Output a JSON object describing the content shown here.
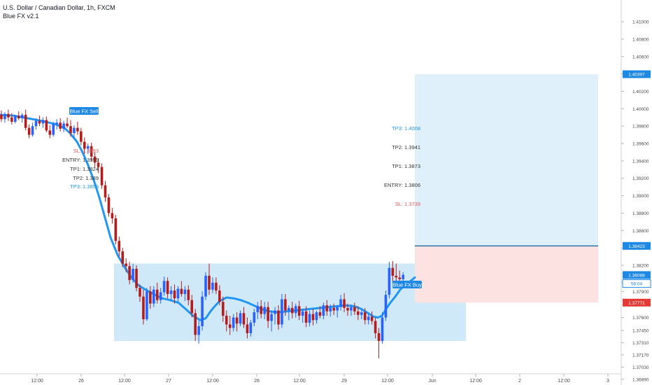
{
  "header": {
    "symbol_title": "U.S. Dollar / Canadian Dollar, 1h, FXCM",
    "indicator_name": "Blue FX v2.1"
  },
  "colors": {
    "up": "#2962ff",
    "down": "#b71c1c",
    "ema": "#2196f3",
    "zone_fill": "#bfe1f6",
    "target_fill": "#dff0fa",
    "stop_fill": "#fde2e2",
    "entry_line": "#1e6fa0",
    "sl_text": "#e05b5b",
    "tp3_text": "#2196f3",
    "neutral_text": "#333333",
    "price_tag_blue": "#1e88e5",
    "price_tag_red": "#e53935"
  },
  "chart_data": {
    "type": "candlestick",
    "symbol": "USDCAD",
    "timeframe": "1h",
    "ylim": [
      1.3684,
      1.4125
    ],
    "y_ticks": [
      "1.41000",
      "1.40800",
      "1.40600",
      "1.40400",
      "1.40200",
      "1.40000",
      "1.39800",
      "1.39600",
      "1.39400",
      "1.39200",
      "1.39000",
      "1.38800",
      "1.38600",
      "1.38400",
      "1.38200",
      "1.38000",
      "1.37900",
      "1.37600",
      "1.37450",
      "1.37310",
      "1.37170",
      "1.37030",
      "1.36890"
    ],
    "x_ticks": [
      "12:00",
      "26",
      "12:00",
      "27",
      "12:00",
      "28",
      "12:00",
      "29",
      "12:00",
      "Jun",
      "12:00",
      "2",
      "12:00",
      "3"
    ],
    "price_tags": [
      {
        "label": "1.40397",
        "value": 1.40397,
        "color": "blue"
      },
      {
        "label": "1.38423",
        "value": 1.38423,
        "color": "blue"
      },
      {
        "label": "1.38088",
        "value": 1.38088,
        "color": "blue"
      },
      {
        "label": "58:04",
        "value": 1.3799,
        "color": "blue_outline"
      },
      {
        "label": "1.37771",
        "value": 1.37771,
        "color": "red"
      }
    ],
    "ohlc_approx_start": 1.3993,
    "sell_signal": {
      "label": "Blue FX Sell",
      "levels": [
        {
          "text": "SL: 1.3993",
          "style": "sl"
        },
        {
          "text": "ENTRY: 1.3959",
          "style": "neutral"
        },
        {
          "text": "TP1: 1.3924",
          "style": "neutral"
        },
        {
          "text": "TP2: 1.389",
          "style": "neutral"
        },
        {
          "text": "TP3: 1.3855",
          "style": "tp3"
        }
      ]
    },
    "buy_signal": {
      "label": "Blue FX Buy",
      "levels": [
        {
          "text": "TP3: 1.4008",
          "style": "tp3"
        },
        {
          "text": "TP2: 1.3941",
          "style": "neutral"
        },
        {
          "text": "TP1: 1.3873",
          "style": "neutral"
        },
        {
          "text": "ENTRY: 1.3806",
          "style": "neutral"
        },
        {
          "text": "SL: 1.3739",
          "style": "sl"
        }
      ]
    },
    "support_zone": {
      "top": 1.3822,
      "bottom": 1.3733
    },
    "long_position": {
      "target": 1.40397,
      "entry": 1.38423,
      "stop": 1.37771
    },
    "ema_path": [
      [
        0,
        1.3993
      ],
      [
        20,
        1.3992
      ],
      [
        40,
        1.3989
      ],
      [
        60,
        1.3986
      ],
      [
        80,
        1.3982
      ],
      [
        92,
        1.3978
      ],
      [
        100,
        1.3972
      ],
      [
        110,
        1.3962
      ],
      [
        118,
        1.395
      ],
      [
        126,
        1.3935
      ],
      [
        134,
        1.3918
      ],
      [
        142,
        1.3898
      ],
      [
        150,
        1.3875
      ],
      [
        158,
        1.3852
      ],
      [
        168,
        1.3832
      ],
      [
        178,
        1.3818
      ],
      [
        188,
        1.3806
      ],
      [
        198,
        1.3797
      ],
      [
        210,
        1.3791
      ],
      [
        222,
        1.3786
      ],
      [
        232,
        1.3782
      ],
      [
        243,
        1.378
      ],
      [
        255,
        1.3777
      ],
      [
        265,
        1.377
      ],
      [
        276,
        1.3762
      ],
      [
        286,
        1.3757
      ],
      [
        294,
        1.3759
      ],
      [
        300,
        1.3766
      ],
      [
        306,
        1.3772
      ],
      [
        314,
        1.3779
      ],
      [
        324,
        1.3783
      ],
      [
        334,
        1.3782
      ],
      [
        344,
        1.378
      ],
      [
        354,
        1.3777
      ],
      [
        365,
        1.3773
      ],
      [
        376,
        1.3769
      ],
      [
        386,
        1.3767
      ],
      [
        398,
        1.3766
      ],
      [
        410,
        1.3767
      ],
      [
        422,
        1.3768
      ],
      [
        434,
        1.3769
      ],
      [
        446,
        1.377
      ],
      [
        458,
        1.3771
      ],
      [
        470,
        1.3772
      ],
      [
        482,
        1.3773
      ],
      [
        494,
        1.3774
      ],
      [
        506,
        1.3773
      ],
      [
        516,
        1.377
      ],
      [
        526,
        1.3765
      ],
      [
        534,
        1.3761
      ],
      [
        540,
        1.376
      ],
      [
        546,
        1.3762
      ],
      [
        552,
        1.377
      ],
      [
        558,
        1.3777
      ],
      [
        565,
        1.3784
      ],
      [
        572,
        1.3792
      ],
      [
        580,
        1.3798
      ],
      [
        587,
        1.3802
      ],
      [
        593,
        1.3806
      ]
    ],
    "candles": [
      {
        "t": 0,
        "o": 1.3993,
        "h": 1.3998,
        "l": 1.3985,
        "c": 1.3988
      },
      {
        "t": 1,
        "o": 1.3988,
        "h": 1.3996,
        "l": 1.3984,
        "c": 1.3994
      },
      {
        "t": 2,
        "o": 1.3994,
        "h": 1.3999,
        "l": 1.3986,
        "c": 1.399
      },
      {
        "t": 3,
        "o": 1.399,
        "h": 1.3995,
        "l": 1.3982,
        "c": 1.3985
      },
      {
        "t": 4,
        "o": 1.3985,
        "h": 1.3993,
        "l": 1.3983,
        "c": 1.3992
      },
      {
        "t": 5,
        "o": 1.3992,
        "h": 1.3997,
        "l": 1.3987,
        "c": 1.3989
      },
      {
        "t": 6,
        "o": 1.3989,
        "h": 1.3995,
        "l": 1.3984,
        "c": 1.3993
      },
      {
        "t": 7,
        "o": 1.3993,
        "h": 1.3999,
        "l": 1.3975,
        "c": 1.3978
      },
      {
        "t": 8,
        "o": 1.3978,
        "h": 1.3982,
        "l": 1.3966,
        "c": 1.397
      },
      {
        "t": 9,
        "o": 1.397,
        "h": 1.3984,
        "l": 1.3968,
        "c": 1.398
      },
      {
        "t": 10,
        "o": 1.398,
        "h": 1.3989,
        "l": 1.3976,
        "c": 1.3986
      },
      {
        "t": 11,
        "o": 1.3986,
        "h": 1.3992,
        "l": 1.398,
        "c": 1.3983
      },
      {
        "t": 12,
        "o": 1.3983,
        "h": 1.399,
        "l": 1.3978,
        "c": 1.3987
      },
      {
        "t": 13,
        "o": 1.3987,
        "h": 1.3991,
        "l": 1.3973,
        "c": 1.3975
      },
      {
        "t": 14,
        "o": 1.3975,
        "h": 1.3981,
        "l": 1.3966,
        "c": 1.397
      },
      {
        "t": 15,
        "o": 1.397,
        "h": 1.3985,
        "l": 1.3968,
        "c": 1.3982
      },
      {
        "t": 16,
        "o": 1.3982,
        "h": 1.3988,
        "l": 1.3976,
        "c": 1.3984
      },
      {
        "t": 17,
        "o": 1.3984,
        "h": 1.3989,
        "l": 1.3974,
        "c": 1.3977
      },
      {
        "t": 18,
        "o": 1.3977,
        "h": 1.3986,
        "l": 1.3973,
        "c": 1.3983
      },
      {
        "t": 19,
        "o": 1.3983,
        "h": 1.399,
        "l": 1.3978,
        "c": 1.398
      },
      {
        "t": 20,
        "o": 1.398,
        "h": 1.3987,
        "l": 1.3968,
        "c": 1.3972
      },
      {
        "t": 21,
        "o": 1.3972,
        "h": 1.3981,
        "l": 1.3966,
        "c": 1.3978
      },
      {
        "t": 22,
        "o": 1.3978,
        "h": 1.3985,
        "l": 1.397,
        "c": 1.3974
      },
      {
        "t": 23,
        "o": 1.3974,
        "h": 1.3978,
        "l": 1.3958,
        "c": 1.3962
      },
      {
        "t": 24,
        "o": 1.3962,
        "h": 1.3967,
        "l": 1.3948,
        "c": 1.3954
      },
      {
        "t": 25,
        "o": 1.3954,
        "h": 1.396,
        "l": 1.3948,
        "c": 1.3957
      },
      {
        "t": 26,
        "o": 1.3957,
        "h": 1.3961,
        "l": 1.394,
        "c": 1.3945
      },
      {
        "t": 27,
        "o": 1.3945,
        "h": 1.395,
        "l": 1.3932,
        "c": 1.3938
      },
      {
        "t": 28,
        "o": 1.3938,
        "h": 1.3943,
        "l": 1.3926,
        "c": 1.3933
      },
      {
        "t": 29,
        "o": 1.3933,
        "h": 1.3937,
        "l": 1.3908,
        "c": 1.3912
      },
      {
        "t": 30,
        "o": 1.3912,
        "h": 1.3917,
        "l": 1.3893,
        "c": 1.3898
      },
      {
        "t": 31,
        "o": 1.3898,
        "h": 1.3902,
        "l": 1.3876,
        "c": 1.388
      },
      {
        "t": 32,
        "o": 1.388,
        "h": 1.3886,
        "l": 1.3868,
        "c": 1.3874
      },
      {
        "t": 33,
        "o": 1.3874,
        "h": 1.3878,
        "l": 1.3844,
        "c": 1.3848
      },
      {
        "t": 34,
        "o": 1.3848,
        "h": 1.3853,
        "l": 1.383,
        "c": 1.3836
      },
      {
        "t": 35,
        "o": 1.3836,
        "h": 1.384,
        "l": 1.3818,
        "c": 1.3822
      },
      {
        "t": 36,
        "o": 1.3822,
        "h": 1.3828,
        "l": 1.3812,
        "c": 1.3819
      },
      {
        "t": 37,
        "o": 1.3819,
        "h": 1.3824,
        "l": 1.3798,
        "c": 1.3803
      },
      {
        "t": 38,
        "o": 1.3803,
        "h": 1.3822,
        "l": 1.38,
        "c": 1.3816
      },
      {
        "t": 39,
        "o": 1.3816,
        "h": 1.382,
        "l": 1.379,
        "c": 1.3794
      },
      {
        "t": 40,
        "o": 1.3794,
        "h": 1.3798,
        "l": 1.3778,
        "c": 1.3784
      },
      {
        "t": 41,
        "o": 1.3784,
        "h": 1.3792,
        "l": 1.3752,
        "c": 1.3758
      },
      {
        "t": 42,
        "o": 1.3758,
        "h": 1.3794,
        "l": 1.3756,
        "c": 1.379
      },
      {
        "t": 43,
        "o": 1.379,
        "h": 1.3796,
        "l": 1.377,
        "c": 1.3776
      },
      {
        "t": 44,
        "o": 1.3776,
        "h": 1.3796,
        "l": 1.3772,
        "c": 1.3792
      },
      {
        "t": 45,
        "o": 1.3792,
        "h": 1.38,
        "l": 1.3776,
        "c": 1.378
      },
      {
        "t": 46,
        "o": 1.378,
        "h": 1.3794,
        "l": 1.3776,
        "c": 1.3789
      },
      {
        "t": 47,
        "o": 1.3789,
        "h": 1.3807,
        "l": 1.3785,
        "c": 1.3802
      },
      {
        "t": 48,
        "o": 1.3802,
        "h": 1.3806,
        "l": 1.3782,
        "c": 1.3787
      },
      {
        "t": 49,
        "o": 1.3787,
        "h": 1.3796,
        "l": 1.378,
        "c": 1.3791
      },
      {
        "t": 50,
        "o": 1.3791,
        "h": 1.3798,
        "l": 1.3776,
        "c": 1.3782
      },
      {
        "t": 51,
        "o": 1.3782,
        "h": 1.3796,
        "l": 1.3778,
        "c": 1.3793
      },
      {
        "t": 52,
        "o": 1.3793,
        "h": 1.3802,
        "l": 1.3784,
        "c": 1.3787
      },
      {
        "t": 53,
        "o": 1.3787,
        "h": 1.3796,
        "l": 1.3779,
        "c": 1.3792
      },
      {
        "t": 54,
        "o": 1.3792,
        "h": 1.3797,
        "l": 1.3774,
        "c": 1.378
      },
      {
        "t": 55,
        "o": 1.378,
        "h": 1.3786,
        "l": 1.376,
        "c": 1.3765
      },
      {
        "t": 56,
        "o": 1.3765,
        "h": 1.377,
        "l": 1.3733,
        "c": 1.374
      },
      {
        "t": 57,
        "o": 1.374,
        "h": 1.3756,
        "l": 1.373,
        "c": 1.375
      },
      {
        "t": 58,
        "o": 1.375,
        "h": 1.379,
        "l": 1.3745,
        "c": 1.3784
      },
      {
        "t": 59,
        "o": 1.3784,
        "h": 1.3812,
        "l": 1.378,
        "c": 1.3808
      },
      {
        "t": 60,
        "o": 1.3808,
        "h": 1.3822,
        "l": 1.3786,
        "c": 1.3792
      },
      {
        "t": 61,
        "o": 1.3792,
        "h": 1.3806,
        "l": 1.3788,
        "c": 1.38
      },
      {
        "t": 62,
        "o": 1.38,
        "h": 1.3806,
        "l": 1.3787,
        "c": 1.3791
      },
      {
        "t": 63,
        "o": 1.3791,
        "h": 1.3797,
        "l": 1.3774,
        "c": 1.3778
      },
      {
        "t": 64,
        "o": 1.3778,
        "h": 1.3784,
        "l": 1.3755,
        "c": 1.3762
      },
      {
        "t": 65,
        "o": 1.3762,
        "h": 1.3768,
        "l": 1.3744,
        "c": 1.3752
      },
      {
        "t": 66,
        "o": 1.3752,
        "h": 1.3762,
        "l": 1.374,
        "c": 1.3748
      },
      {
        "t": 67,
        "o": 1.3748,
        "h": 1.3764,
        "l": 1.3744,
        "c": 1.376
      },
      {
        "t": 68,
        "o": 1.376,
        "h": 1.3766,
        "l": 1.3744,
        "c": 1.3753
      },
      {
        "t": 69,
        "o": 1.3753,
        "h": 1.3768,
        "l": 1.375,
        "c": 1.3765
      },
      {
        "t": 70,
        "o": 1.3765,
        "h": 1.3772,
        "l": 1.3748,
        "c": 1.3752
      },
      {
        "t": 71,
        "o": 1.3752,
        "h": 1.376,
        "l": 1.3736,
        "c": 1.3742
      },
      {
        "t": 72,
        "o": 1.3742,
        "h": 1.3757,
        "l": 1.3738,
        "c": 1.3754
      },
      {
        "t": 73,
        "o": 1.3754,
        "h": 1.377,
        "l": 1.375,
        "c": 1.3766
      },
      {
        "t": 74,
        "o": 1.3766,
        "h": 1.3778,
        "l": 1.3758,
        "c": 1.3773
      },
      {
        "t": 75,
        "o": 1.3773,
        "h": 1.378,
        "l": 1.3759,
        "c": 1.3764
      },
      {
        "t": 76,
        "o": 1.3764,
        "h": 1.3778,
        "l": 1.3758,
        "c": 1.3772
      },
      {
        "t": 77,
        "o": 1.3772,
        "h": 1.3778,
        "l": 1.3748,
        "c": 1.3756
      },
      {
        "t": 78,
        "o": 1.3756,
        "h": 1.3768,
        "l": 1.3744,
        "c": 1.3764
      },
      {
        "t": 79,
        "o": 1.3764,
        "h": 1.3772,
        "l": 1.3752,
        "c": 1.3768
      },
      {
        "t": 80,
        "o": 1.3768,
        "h": 1.3774,
        "l": 1.3746,
        "c": 1.3752
      },
      {
        "t": 81,
        "o": 1.3752,
        "h": 1.3787,
        "l": 1.3748,
        "c": 1.3781
      },
      {
        "t": 82,
        "o": 1.3781,
        "h": 1.3787,
        "l": 1.3762,
        "c": 1.3768
      },
      {
        "t": 83,
        "o": 1.3768,
        "h": 1.3774,
        "l": 1.3757,
        "c": 1.3771
      },
      {
        "t": 84,
        "o": 1.3771,
        "h": 1.3778,
        "l": 1.3759,
        "c": 1.3765
      },
      {
        "t": 85,
        "o": 1.3765,
        "h": 1.3776,
        "l": 1.376,
        "c": 1.3773
      },
      {
        "t": 86,
        "o": 1.3773,
        "h": 1.3779,
        "l": 1.3757,
        "c": 1.3762
      },
      {
        "t": 87,
        "o": 1.3762,
        "h": 1.377,
        "l": 1.3754,
        "c": 1.3767
      },
      {
        "t": 88,
        "o": 1.3767,
        "h": 1.3773,
        "l": 1.3749,
        "c": 1.3754
      },
      {
        "t": 89,
        "o": 1.3754,
        "h": 1.3768,
        "l": 1.375,
        "c": 1.3764
      },
      {
        "t": 90,
        "o": 1.3764,
        "h": 1.377,
        "l": 1.3751,
        "c": 1.3757
      },
      {
        "t": 91,
        "o": 1.3757,
        "h": 1.3768,
        "l": 1.3753,
        "c": 1.3766
      },
      {
        "t": 92,
        "o": 1.3766,
        "h": 1.3773,
        "l": 1.3759,
        "c": 1.3762
      },
      {
        "t": 93,
        "o": 1.3762,
        "h": 1.3777,
        "l": 1.3758,
        "c": 1.3774
      },
      {
        "t": 94,
        "o": 1.3774,
        "h": 1.378,
        "l": 1.3762,
        "c": 1.3767
      },
      {
        "t": 95,
        "o": 1.3767,
        "h": 1.3775,
        "l": 1.3761,
        "c": 1.3771
      },
      {
        "t": 96,
        "o": 1.3771,
        "h": 1.3776,
        "l": 1.3763,
        "c": 1.3768
      },
      {
        "t": 97,
        "o": 1.3768,
        "h": 1.3774,
        "l": 1.376,
        "c": 1.3772
      },
      {
        "t": 98,
        "o": 1.3772,
        "h": 1.3786,
        "l": 1.3768,
        "c": 1.3781
      },
      {
        "t": 99,
        "o": 1.3781,
        "h": 1.3788,
        "l": 1.3766,
        "c": 1.3771
      },
      {
        "t": 100,
        "o": 1.3771,
        "h": 1.3776,
        "l": 1.3762,
        "c": 1.3768
      },
      {
        "t": 101,
        "o": 1.3768,
        "h": 1.3775,
        "l": 1.3762,
        "c": 1.3772
      },
      {
        "t": 102,
        "o": 1.3772,
        "h": 1.3777,
        "l": 1.3763,
        "c": 1.3767
      },
      {
        "t": 103,
        "o": 1.3767,
        "h": 1.3773,
        "l": 1.3757,
        "c": 1.3763
      },
      {
        "t": 104,
        "o": 1.3763,
        "h": 1.3769,
        "l": 1.3758,
        "c": 1.3766
      },
      {
        "t": 105,
        "o": 1.3766,
        "h": 1.3771,
        "l": 1.3752,
        "c": 1.3757
      },
      {
        "t": 106,
        "o": 1.3757,
        "h": 1.3764,
        "l": 1.3752,
        "c": 1.3761
      },
      {
        "t": 107,
        "o": 1.3761,
        "h": 1.3767,
        "l": 1.3752,
        "c": 1.3756
      },
      {
        "t": 108,
        "o": 1.3756,
        "h": 1.376,
        "l": 1.3736,
        "c": 1.3742
      },
      {
        "t": 109,
        "o": 1.3742,
        "h": 1.3748,
        "l": 1.3713,
        "c": 1.3733
      },
      {
        "t": 110,
        "o": 1.3733,
        "h": 1.3766,
        "l": 1.373,
        "c": 1.376
      },
      {
        "t": 111,
        "o": 1.376,
        "h": 1.3791,
        "l": 1.3756,
        "c": 1.3786
      },
      {
        "t": 112,
        "o": 1.3786,
        "h": 1.3824,
        "l": 1.3782,
        "c": 1.3817
      },
      {
        "t": 113,
        "o": 1.3817,
        "h": 1.3825,
        "l": 1.38,
        "c": 1.3808
      },
      {
        "t": 114,
        "o": 1.3808,
        "h": 1.3822,
        "l": 1.3799,
        "c": 1.3806
      },
      {
        "t": 115,
        "o": 1.3806,
        "h": 1.3814,
        "l": 1.3802,
        "c": 1.3804
      },
      {
        "t": 116,
        "o": 1.3804,
        "h": 1.3812,
        "l": 1.38,
        "c": 1.3809
      }
    ]
  }
}
